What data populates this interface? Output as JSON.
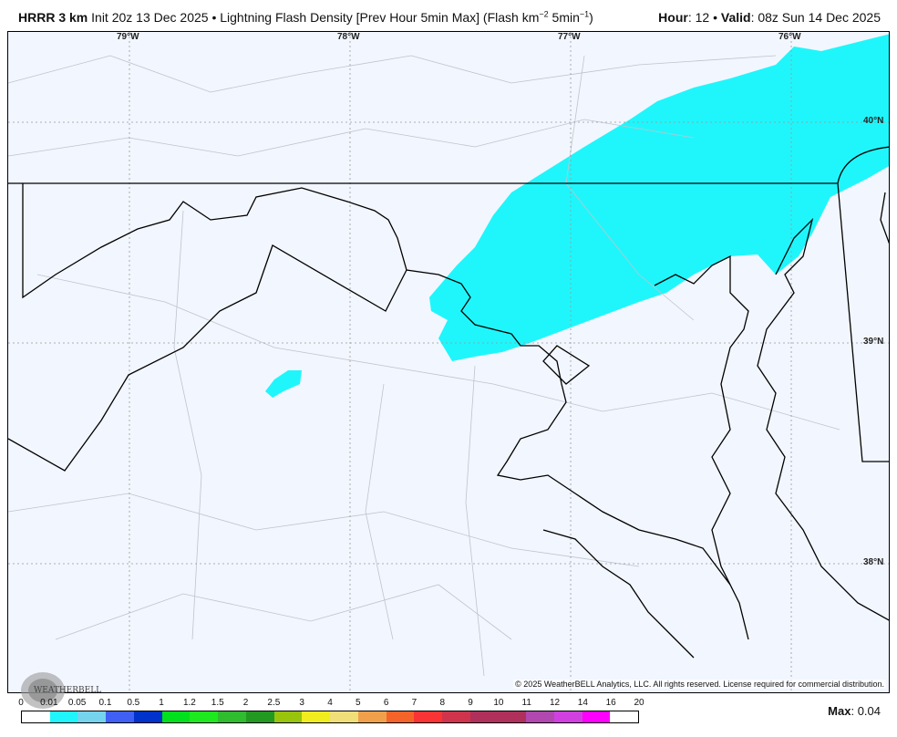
{
  "header": {
    "model": "HRRR 3 km",
    "init": "Init 20z 13 Dec 2025",
    "bullet": "•",
    "product": "Lightning Flash Density [Prev Hour 5min Max] (Flash km",
    "exp1": "−2",
    "mid": " 5min",
    "exp2": "−1",
    "close": ")",
    "hour_label": "Hour",
    "hour": ": 12",
    "valid_label": "Valid",
    "valid": ": 08z Sun 14 Dec 2025"
  },
  "map": {
    "lon_labels": [
      "79°W",
      "78°W",
      "77°W",
      "76°W"
    ],
    "lat_labels": [
      "40°N",
      "39°N",
      "38°N"
    ],
    "background_color": "#f2f6fe",
    "field_color": "#1ff6fb",
    "copyright": "© 2025 WeatherBELL Analytics, LLC. All rights reserved. License required for commercial distribution.",
    "logo_text": "WeatherBELL Analytics LLC"
  },
  "legend": {
    "labels": [
      "0",
      "0.01",
      "0.05",
      "0.1",
      "0.5",
      "1",
      "1.2",
      "1.5",
      "2",
      "2.5",
      "3",
      "4",
      "5",
      "6",
      "7",
      "8",
      "9",
      "10",
      "11",
      "12",
      "14",
      "16",
      "20"
    ],
    "colors": [
      "#ffffff",
      "#1ff6fb",
      "#75d3ee",
      "#4060f5",
      "#0032cc",
      "#00e01c",
      "#1ee81e",
      "#2fbc2f",
      "#229a22",
      "#98c40c",
      "#f0ec1e",
      "#f0de78",
      "#f0a04a",
      "#f46428",
      "#fa3434",
      "#d0344c",
      "#b0305c",
      "#b0305c",
      "#b048b0",
      "#d040e0",
      "#ff00ff",
      "#ffffff"
    ]
  },
  "max": {
    "label": "Max",
    "value": ": 0.04"
  }
}
